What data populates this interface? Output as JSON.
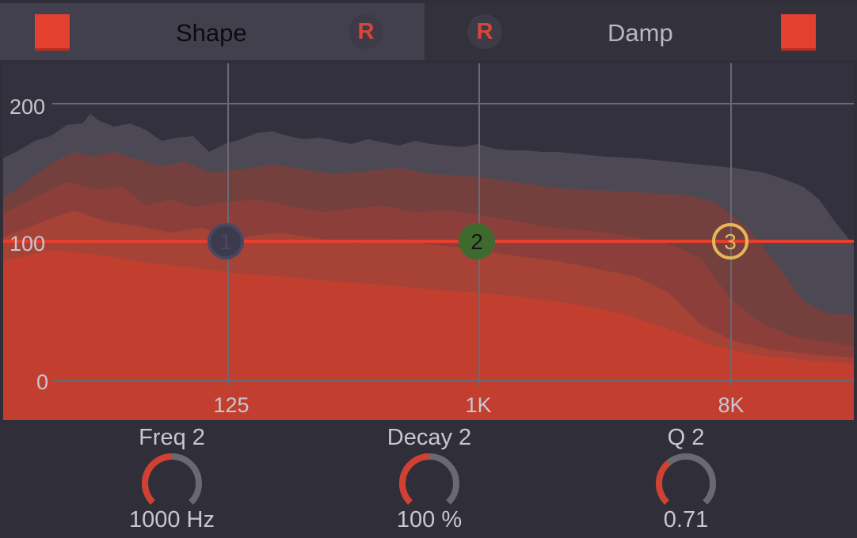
{
  "tabs": {
    "shape": {
      "label": "Shape",
      "reset_label": "R"
    },
    "damp": {
      "label": "Damp",
      "reset_label": "R"
    }
  },
  "graph": {
    "y_ticks": [
      "200",
      "100",
      "0"
    ],
    "x_ticks": [
      "125",
      "1K",
      "8K"
    ],
    "level_line_value": 100,
    "nodes": [
      {
        "label": "1",
        "freq": "125",
        "value": 100,
        "style": "outline-dark"
      },
      {
        "label": "2",
        "freq": "1K",
        "value": 100,
        "style": "filled-green"
      },
      {
        "label": "3",
        "freq": "8K",
        "value": 100,
        "style": "outline-yellow"
      }
    ]
  },
  "knobs": [
    {
      "title": "Freq 2",
      "value": "1000 Hz",
      "fill_fraction": 0.5
    },
    {
      "title": "Decay 2",
      "value": "100 %",
      "fill_fraction": 0.5
    },
    {
      "title": "Q 2",
      "value": "0.71",
      "fill_fraction": 0.35
    }
  ],
  "colors": {
    "accent_red": "#e3402f",
    "graph_fill": "#c23f30",
    "node_green": "#3f6a2e",
    "node_yellow": "#e6b65a",
    "node_dark": "#4a4860",
    "background": "#2f2e39"
  }
}
